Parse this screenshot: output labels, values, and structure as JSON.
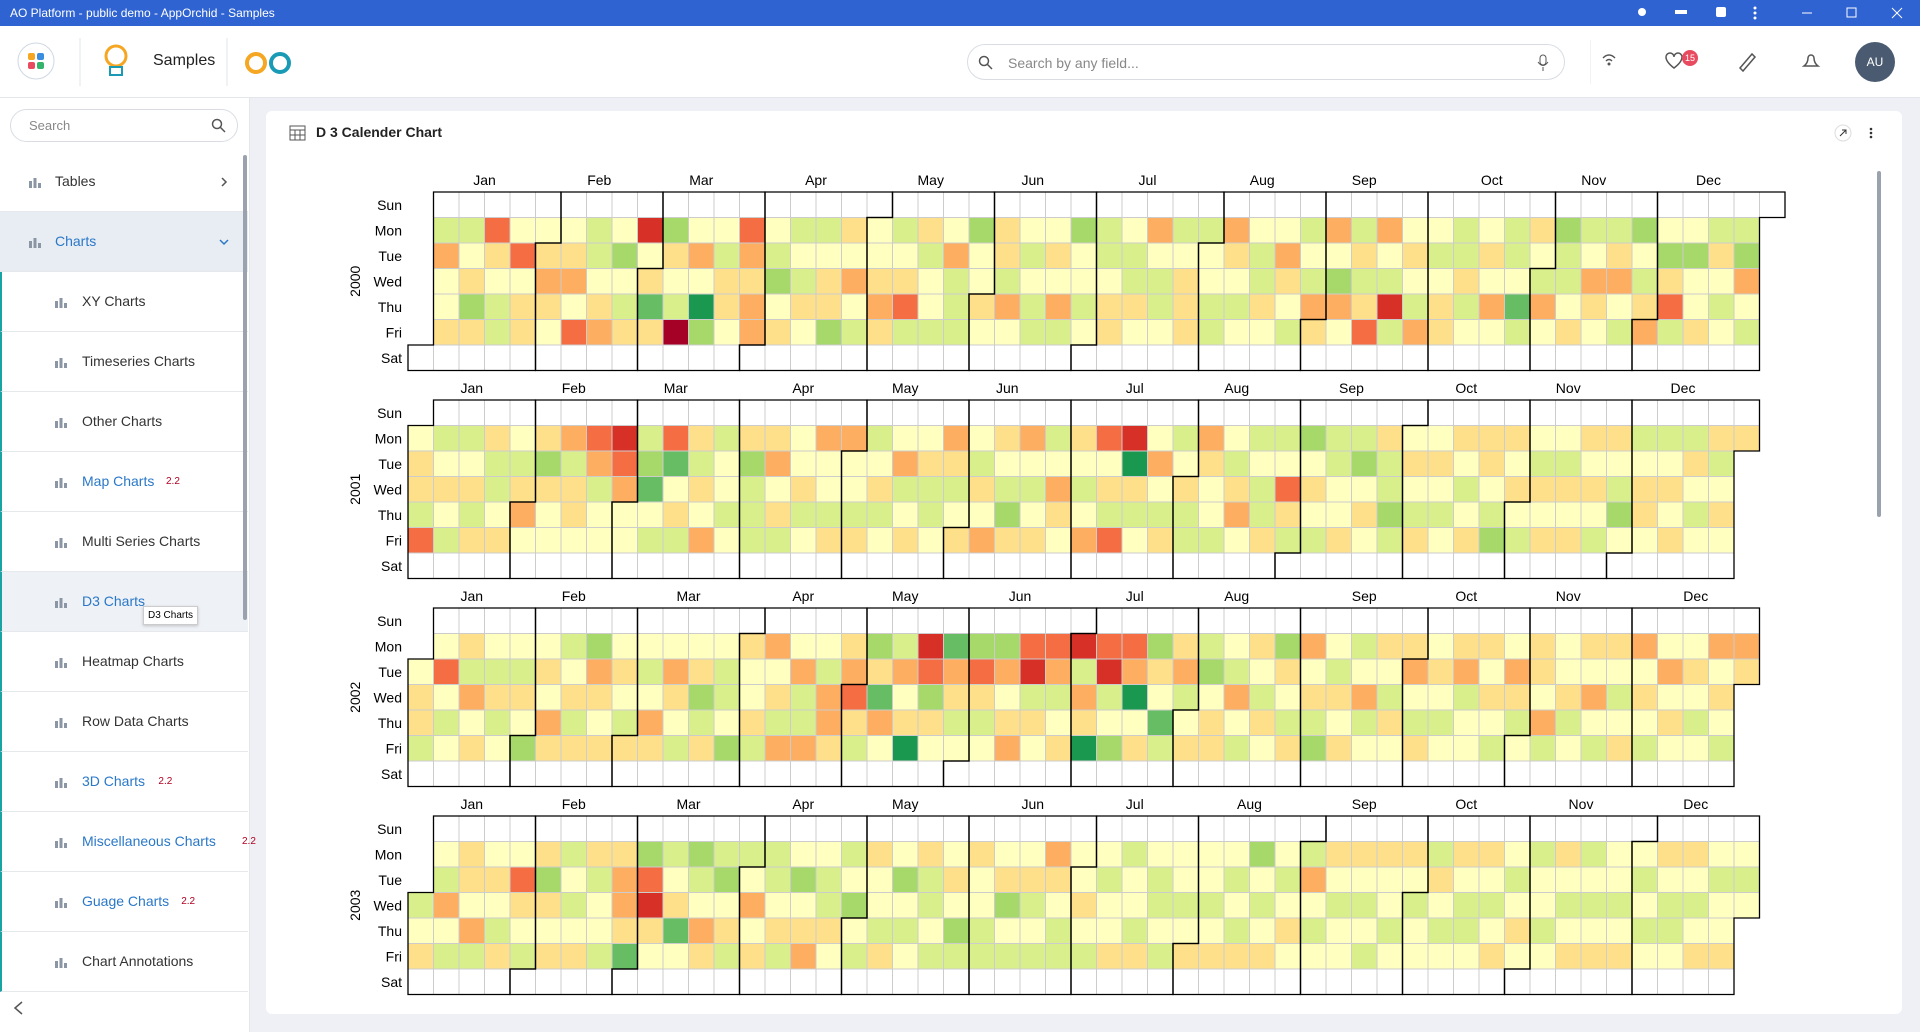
{
  "window": {
    "title": "AO Platform - public demo - AppOrchid - Samples"
  },
  "header": {
    "app": "Samples",
    "search_placeholder": "Search by any field...",
    "badge": "15",
    "avatar": "AU"
  },
  "sidebar": {
    "search_placeholder": "Search",
    "items": [
      {
        "label": "Tables"
      },
      {
        "label": "Charts"
      },
      {
        "label": "XY Charts"
      },
      {
        "label": "Timeseries Charts"
      },
      {
        "label": "Other Charts"
      },
      {
        "label": "Map Charts",
        "tag": "2.2"
      },
      {
        "label": "Multi Series Charts"
      },
      {
        "label": "D3 Charts"
      },
      {
        "label": "Heatmap Charts"
      },
      {
        "label": "Row Data Charts"
      },
      {
        "label": "3D Charts",
        "tag": "2.2"
      },
      {
        "label": "Miscellaneous Charts",
        "tag": "2.2"
      },
      {
        "label": "Guage Charts",
        "tag": "2.2"
      },
      {
        "label": "Chart Annotations"
      }
    ],
    "tooltip": "D3 Charts"
  },
  "panel": {
    "title": "D 3 Calender Chart"
  },
  "chart_data": {
    "type": "calendar",
    "months": [
      "Jan",
      "Feb",
      "Mar",
      "Apr",
      "May",
      "Jun",
      "Jul",
      "Aug",
      "Sep",
      "Oct",
      "Nov",
      "Dec"
    ],
    "weekdays": [
      "Sun",
      "Mon",
      "Tue",
      "Wed",
      "Thu",
      "Fri",
      "Sat"
    ],
    "color_domain": [
      -5,
      5
    ],
    "colors": [
      "#a50026",
      "#d73027",
      "#f46d43",
      "#fdae61",
      "#fee08b",
      "#ffffbf",
      "#d9ef8b",
      "#a6d96a",
      "#66bd63",
      "#1a9850",
      "#006837"
    ],
    "years": [
      {
        "label": "2000",
        "values": [
          1,
          -2,
          0,
          0,
          -1,
          1,
          0,
          -1,
          2,
          -1,
          -3,
          -1,
          0,
          1,
          1,
          0,
          -3,
          0,
          -1,
          -1,
          0,
          -1,
          -2,
          -1,
          0,
          0,
          -1,
          -2,
          0,
          -3,
          1,
          1,
          0,
          -1,
          -2,
          0,
          2,
          0,
          1,
          -1,
          -4,
          0,
          -1,
          3,
          -1,
          2,
          -1,
          0,
          1,
          -5,
          0,
          -2,
          0,
          4,
          2,
          0,
          1,
          -1,
          -1,
          0,
          -3,
          -2,
          -1,
          -2,
          -2,
          0,
          1,
          2,
          0,
          -1,
          1,
          0,
          1,
          -1,
          0,
          1,
          0,
          -1,
          -1,
          2,
          -1,
          0,
          -2,
          0,
          1,
          0,
          0,
          -1,
          -2,
          -1,
          1,
          0,
          -1,
          -3,
          1,
          -1,
          1,
          0,
          0,
          1,
          0,
          -2,
          1,
          1,
          1,
          2,
          0,
          0,
          -1,
          0,
          -1,
          -1,
          1,
          -2,
          0,
          0,
          1,
          0,
          1,
          1,
          0,
          -1,
          0,
          -2,
          1,
          2,
          0,
          0,
          1,
          0,
          1,
          1,
          0,
          -1,
          -1,
          0,
          1,
          1,
          -1,
          0,
          -2,
          0,
          1,
          1,
          0,
          1,
          0,
          -1,
          -1,
          -1,
          1,
          0,
          0,
          1,
          1,
          -2,
          -1,
          0,
          1,
          0,
          0,
          1,
          1,
          -1,
          0,
          0,
          -2,
          -1,
          0,
          1,
          1,
          0,
          1,
          -2,
          -1,
          -2,
          0,
          2,
          -2,
          0,
          1,
          -1,
          1,
          -1,
          -3,
          -2,
          0,
          1,
          -4,
          1,
          0,
          -1,
          0,
          1,
          -2,
          0,
          1,
          0,
          -1,
          -1,
          1,
          1,
          -1,
          1,
          0,
          0,
          -1,
          0,
          -2,
          0,
          1,
          1,
          0,
          3,
          1,
          -1,
          0,
          1,
          -2,
          0,
          2,
          1,
          1,
          0,
          -1,
          1,
          0,
          -2,
          -1,
          0,
          1,
          -1,
          -2,
          0,
          1,
          2,
          0,
          1,
          -1,
          -2,
          0,
          2,
          -1,
          -3,
          1,
          0,
          2,
          0,
          0,
          -1,
          1,
          -1,
          0,
          1,
          0,
          1,
          2,
          -2,
          0,
          1
        ]
      },
      {
        "label": "2001",
        "values": [
          0,
          -1,
          -1,
          1,
          -3,
          1,
          0,
          -1,
          0,
          1,
          1,
          0,
          -1,
          1,
          -1,
          -1,
          1,
          1,
          0,
          -1,
          0,
          1,
          -1,
          -2,
          0,
          -1,
          2,
          -1,
          0,
          0,
          -2,
          1,
          -1,
          -1,
          0,
          -3,
          -2,
          1,
          0,
          0,
          -4,
          -3,
          -2,
          0,
          0,
          1,
          2,
          3,
          0,
          1,
          -3,
          3,
          0,
          -1,
          1,
          -1,
          1,
          -1,
          0,
          -2,
          1,
          0,
          0,
          1,
          0,
          -1,
          2,
          1,
          1,
          1,
          -1,
          -2,
          0,
          -1,
          1,
          0,
          0,
          -1,
          1,
          0,
          -2,
          0,
          0,
          1,
          -1,
          -2,
          0,
          0,
          1,
          -1,
          1,
          0,
          -1,
          1,
          0,
          0,
          -2,
          1,
          0,
          -1,
          0,
          -1,
          1,
          1,
          0,
          -2,
          -1,
          1,
          0,
          -1,
          0,
          1,
          -1,
          0,
          -2,
          -1,
          0,
          1,
          2,
          -1,
          -2,
          0,
          1,
          0,
          -1,
          1,
          0,
          -2,
          -1,
          0,
          -1,
          0,
          1,
          0,
          -2,
          -3,
          0,
          -1,
          1,
          -3,
          -4,
          4,
          -1,
          1,
          0,
          0,
          -2,
          0,
          1,
          -1,
          1,
          0,
          -1,
          1,
          1,
          -2,
          -1,
          0,
          0,
          1,
          0,
          1,
          -1,
          -2,
          0,
          1,
          0,
          1,
          1,
          -1,
          1,
          0,
          -3,
          -1,
          1,
          2,
          0,
          -1,
          0,
          1,
          1,
          1,
          0,
          0,
          -1,
          1,
          2,
          0,
          -1,
          0,
          -1,
          1,
          1,
          2,
          1,
          0,
          -1,
          0,
          1,
          -1,
          0,
          -1,
          0,
          1,
          0,
          -1,
          0,
          1,
          0,
          -1,
          -1,
          -1,
          0,
          1,
          2,
          -1,
          0,
          -1,
          0,
          1,
          0,
          1,
          -1,
          0,
          -1,
          0,
          1,
          -1,
          0,
          -1,
          -1,
          0,
          -1,
          0,
          1,
          -1,
          0,
          1,
          2,
          0,
          1,
          0,
          -1,
          -1,
          0,
          1,
          0,
          -1,
          0,
          -1,
          1,
          -1,
          0,
          1,
          0,
          -1,
          1,
          0,
          -1,
          0,
          -1
        ]
      },
      {
        "label": "2002",
        "values": [
          0,
          -1,
          -1,
          1,
          0,
          -3,
          0,
          1,
          0,
          -1,
          1,
          -2,
          0,
          -1,
          0,
          1,
          -1,
          1,
          0,
          0,
          1,
          -1,
          0,
          2,
          0,
          -1,
          0,
          -2,
          -1,
          1,
          0,
          -1,
          1,
          -1,
          2,
          -2,
          -1,
          0,
          -1,
          0,
          -1,
          0,
          1,
          -1,
          0,
          1,
          0,
          -2,
          -1,
          0,
          -2,
          -1,
          0,
          1,
          0,
          -1,
          2,
          1,
          -1,
          0,
          1,
          1,
          0,
          2,
          -1,
          0,
          0,
          -1,
          1,
          -2,
          0,
          -1,
          1,
          -2,
          0,
          -2,
          1,
          1,
          -2,
          0,
          1,
          -2,
          -2,
          -1,
          -1,
          -2,
          -3,
          -1,
          1,
          2,
          -1,
          3,
          -2,
          0,
          1,
          -2,
          0,
          -1,
          4,
          -4,
          -3,
          2,
          -1,
          0,
          3,
          -2,
          -1,
          1,
          0,
          2,
          -3,
          -1,
          1,
          0,
          2,
          -2,
          0,
          -1,
          -2,
          -3,
          -4,
          1,
          -1,
          0,
          -3,
          -2,
          1,
          0,
          -1,
          -4,
          1,
          -2,
          -1,
          4,
          -3,
          -4,
          1,
          0,
          2,
          -3,
          -2,
          4,
          0,
          -1,
          2,
          -1,
          0,
          3,
          1,
          -1,
          -2,
          1,
          0,
          -1,
          1,
          2,
          0,
          -1,
          -1,
          0,
          1,
          -2,
          0,
          1,
          -1,
          0,
          1,
          -1,
          0,
          2,
          -1,
          0,
          1,
          -1,
          -2,
          0,
          -1,
          1,
          2,
          0,
          1,
          -1,
          0,
          -1,
          1,
          0,
          -2,
          1,
          0,
          -1,
          0,
          1,
          -1,
          0,
          -1,
          -2,
          0,
          1,
          -1,
          0,
          -1,
          0,
          1,
          0,
          -1,
          -2,
          1,
          0,
          0,
          -1,
          0,
          -1,
          0,
          1,
          0,
          -2,
          -1,
          1,
          0,
          -1,
          -1,
          0,
          -2,
          1,
          0,
          0,
          -1,
          1,
          0,
          -1,
          0,
          -2,
          0,
          1,
          -1,
          0,
          1,
          0,
          -1,
          -2,
          0,
          -1,
          0,
          1,
          0,
          -2,
          0,
          -1,
          0,
          0,
          -1,
          0,
          1,
          0,
          -2,
          0,
          -1,
          0,
          1,
          -2,
          -1
        ]
      },
      {
        "label": "2003",
        "values": [
          1,
          0,
          -1,
          0,
          1,
          -2,
          0,
          1,
          -1,
          -1,
          0,
          -2,
          1,
          0,
          -1,
          0,
          1,
          -1,
          0,
          -3,
          -1,
          0,
          1,
          -1,
          2,
          -1,
          0,
          -1,
          1,
          0,
          1,
          0,
          -1,
          -1,
          1,
          0,
          0,
          1,
          -1,
          -2,
          -2,
          -1,
          3,
          2,
          -3,
          -4,
          -1,
          0,
          1,
          0,
          -1,
          3,
          0,
          2,
          1,
          0,
          -2,
          -1,
          1,
          2,
          0,
          -1,
          1,
          1,
          0,
          -2,
          0,
          -1,
          1,
          1,
          0,
          -1,
          1,
          0,
          2,
          0,
          -1,
          -2,
          0,
          1,
          1,
          -1,
          0,
          1,
          0,
          2,
          0,
          1,
          -1,
          0,
          0,
          1,
          -1,
          0,
          2,
          0,
          1,
          0,
          -1,
          1,
          1,
          0,
          1,
          0,
          -1,
          0,
          2,
          1,
          -1,
          0,
          0,
          1,
          1,
          0,
          -1,
          2,
          0,
          1,
          0,
          -1,
          1,
          0,
          1,
          -2,
          -1,
          0,
          1,
          1,
          0,
          0,
          -1,
          0,
          1,
          0,
          1,
          0,
          0,
          -1,
          1,
          0,
          0,
          1,
          -1,
          0,
          1,
          1,
          0,
          1,
          0,
          0,
          1,
          0,
          -1,
          0,
          0,
          1,
          0,
          -1,
          0,
          1,
          0,
          1,
          -1,
          2,
          0,
          1,
          0,
          -1,
          0,
          1,
          0,
          -1,
          0,
          1,
          -2,
          0,
          1,
          0,
          -1,
          0,
          1,
          0,
          0,
          -1,
          0,
          1,
          0,
          1,
          -1,
          0,
          0,
          1,
          0,
          -1,
          0,
          1,
          0,
          0,
          1,
          -1,
          0,
          1,
          0,
          -1,
          0,
          1,
          1,
          0,
          -1,
          0,
          1,
          0,
          -1,
          0,
          1,
          0,
          -1,
          0,
          1,
          0,
          0,
          1,
          0,
          -1,
          0,
          1,
          0,
          -1,
          1,
          0,
          1,
          0,
          -1,
          0,
          0,
          1,
          0,
          -1,
          0,
          1,
          0,
          1,
          0,
          -1,
          0,
          1,
          1,
          0,
          -1,
          0,
          1,
          0,
          -1,
          0,
          1,
          0,
          0,
          -1,
          0,
          1,
          0
        ]
      }
    ]
  }
}
